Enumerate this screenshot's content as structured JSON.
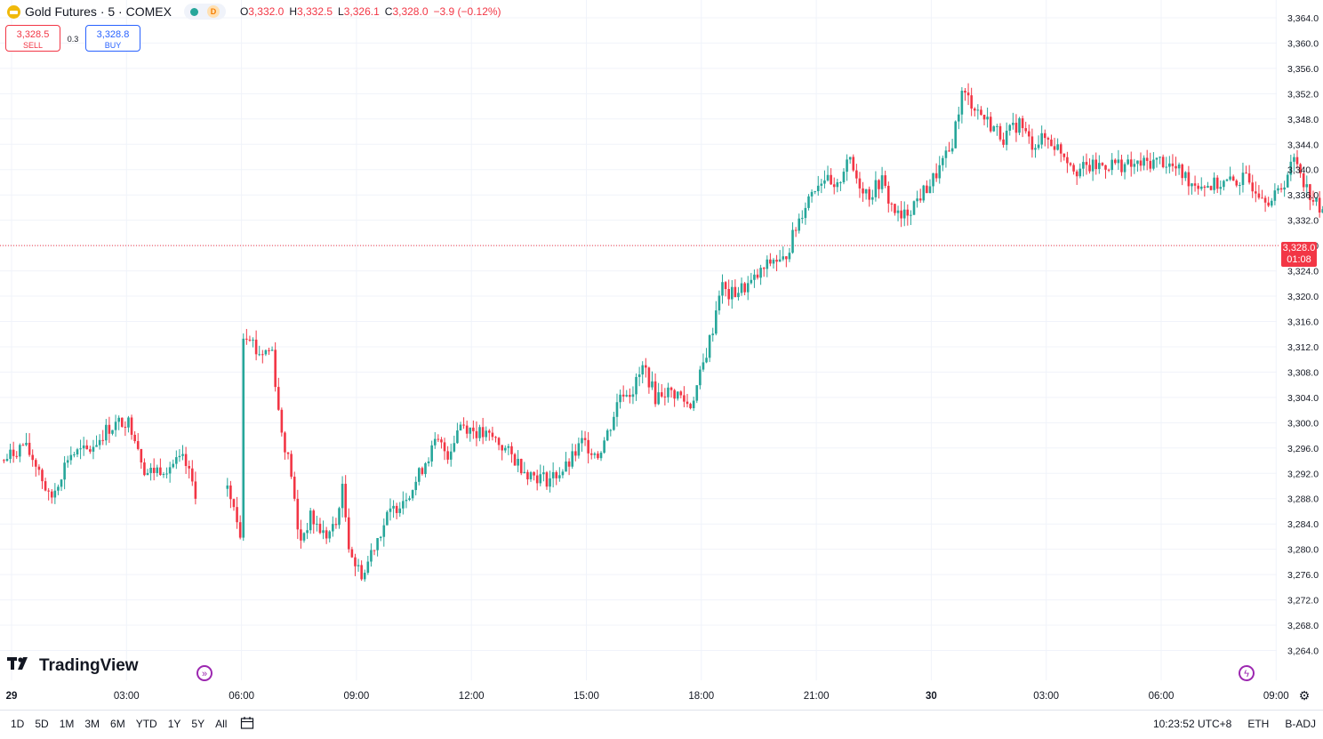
{
  "header": {
    "title": "Gold Futures · 5 · COMEX",
    "badge": "D",
    "ohlc": [
      {
        "label": "O",
        "value": "3,332.0"
      },
      {
        "label": "H",
        "value": "3,332.5"
      },
      {
        "label": "L",
        "value": "3,326.1"
      },
      {
        "label": "C",
        "value": "3,328.0"
      }
    ],
    "change": "−3.9 (−0.12%)"
  },
  "trade": {
    "sell_price": "3,328.5",
    "sell_label": "SELL",
    "spread": "0.3",
    "buy_price": "3,328.8",
    "buy_label": "BUY"
  },
  "logo_text": "TradingView",
  "last_price": {
    "value": "3,328.0",
    "countdown": "01:08"
  },
  "bottom": {
    "ranges": [
      "1D",
      "5D",
      "1M",
      "3M",
      "6M",
      "YTD",
      "1Y",
      "5Y",
      "All"
    ],
    "time": "10:23:52 UTC+8",
    "session": "ETH",
    "adjust": "B-ADJ"
  },
  "colors": {
    "up": "#26a69a",
    "down": "#f23645",
    "grid": "#f0f3fa"
  },
  "chart_data": {
    "type": "candlestick",
    "title": "Gold Futures · 5 · COMEX",
    "y_ticks": [
      3264,
      3268,
      3272,
      3276,
      3280,
      3284,
      3288,
      3292,
      3296,
      3300,
      3304,
      3308,
      3312,
      3316,
      3320,
      3324,
      3328,
      3332,
      3336,
      3340,
      3344,
      3348,
      3352,
      3356,
      3360,
      3364
    ],
    "y_tick_labels": [
      "3,264.0",
      "3,268.0",
      "3,272.0",
      "3,276.0",
      "3,280.0",
      "3,284.0",
      "3,288.0",
      "3,292.0",
      "3,296.0",
      "3,300.0",
      "3,304.0",
      "3,308.0",
      "3,312.0",
      "3,316.0",
      "3,320.0",
      "3,324.0",
      "3,328.0",
      "3,332.0",
      "3,336.0",
      "3,340.0",
      "3,344.0",
      "3,348.0",
      "3,352.0",
      "3,356.0",
      "3,360.0",
      "3,364.0"
    ],
    "ylim": [
      3261.4,
      3365.4
    ],
    "x_ticks": [
      {
        "label": "29",
        "bold": true,
        "hours": 0
      },
      {
        "label": "03:00",
        "hours": 3
      },
      {
        "label": "06:00",
        "hours": 6
      },
      {
        "label": "09:00",
        "hours": 9
      },
      {
        "label": "12:00",
        "hours": 12
      },
      {
        "label": "15:00",
        "hours": 15
      },
      {
        "label": "18:00",
        "hours": 18
      },
      {
        "label": "21:00",
        "hours": 21
      },
      {
        "label": "30",
        "bold": true,
        "hours": 24
      },
      {
        "label": "03:00",
        "hours": 27
      },
      {
        "label": "06:00",
        "hours": 30
      },
      {
        "label": "09:00",
        "hours": 33
      }
    ],
    "last_close": 3328.0,
    "close_path": [
      [
        -0.2,
        3294
      ],
      [
        0.3,
        3296.5
      ],
      [
        0.7,
        3293
      ],
      [
        1.0,
        3287.5
      ],
      [
        1.5,
        3295
      ],
      [
        2.0,
        3295.5
      ],
      [
        2.5,
        3299
      ],
      [
        3.0,
        3300.5
      ],
      [
        3.2,
        3298.5
      ],
      [
        3.5,
        3292
      ],
      [
        4.0,
        3293
      ],
      [
        4.5,
        3294
      ],
      [
        4.8,
        3289
      ],
      [
        5.55,
        3291.5
      ],
      [
        5.9,
        3284
      ],
      [
        6.0,
        3282
      ],
      [
        6.05,
        3314
      ],
      [
        6.2,
        3314.5
      ],
      [
        6.4,
        3311
      ],
      [
        6.8,
        3311.5
      ],
      [
        7.0,
        3300
      ],
      [
        7.3,
        3292
      ],
      [
        7.5,
        3281
      ],
      [
        7.8,
        3285
      ],
      [
        8.2,
        3282
      ],
      [
        8.5,
        3284
      ],
      [
        8.6,
        3291
      ],
      [
        8.8,
        3281
      ],
      [
        9.0,
        3277
      ],
      [
        9.2,
        3276
      ],
      [
        9.4,
        3280
      ],
      [
        9.8,
        3285
      ],
      [
        10.2,
        3288
      ],
      [
        10.5,
        3290
      ],
      [
        10.8,
        3294
      ],
      [
        11.1,
        3297
      ],
      [
        11.4,
        3295
      ],
      [
        11.7,
        3300
      ],
      [
        12.0,
        3299
      ],
      [
        12.3,
        3298
      ],
      [
        12.6,
        3297.5
      ],
      [
        13.0,
        3295
      ],
      [
        13.5,
        3292
      ],
      [
        14.0,
        3291
      ],
      [
        14.5,
        3293
      ],
      [
        14.9,
        3297
      ],
      [
        15.3,
        3295
      ],
      [
        15.6,
        3299
      ],
      [
        15.9,
        3305
      ],
      [
        16.2,
        3305
      ],
      [
        16.5,
        3309
      ],
      [
        16.8,
        3304
      ],
      [
        17.0,
        3305
      ],
      [
        17.4,
        3304.5
      ],
      [
        17.7,
        3302.5
      ],
      [
        17.9,
        3306
      ],
      [
        18.0,
        3308
      ],
      [
        18.3,
        3315
      ],
      [
        18.5,
        3322
      ],
      [
        18.7,
        3320
      ],
      [
        19.0,
        3321
      ],
      [
        19.3,
        3322
      ],
      [
        19.6,
        3324
      ],
      [
        19.9,
        3326
      ],
      [
        20.1,
        3325
      ],
      [
        20.3,
        3328
      ],
      [
        20.6,
        3333
      ],
      [
        20.9,
        3337
      ],
      [
        21.2,
        3339
      ],
      [
        21.5,
        3336
      ],
      [
        21.8,
        3342
      ],
      [
        22.1,
        3338
      ],
      [
        22.4,
        3336
      ],
      [
        22.7,
        3338.5
      ],
      [
        22.9,
        3335
      ],
      [
        23.2,
        3332
      ],
      [
        23.6,
        3335
      ],
      [
        24.0,
        3338
      ],
      [
        24.5,
        3343
      ],
      [
        24.8,
        3352
      ],
      [
        25.0,
        3351
      ],
      [
        25.4,
        3348
      ],
      [
        25.9,
        3345
      ],
      [
        26.3,
        3347.5
      ],
      [
        26.6,
        3344
      ],
      [
        27.0,
        3345
      ],
      [
        27.4,
        3343
      ],
      [
        27.8,
        3340
      ],
      [
        28.3,
        3340.5
      ],
      [
        28.8,
        3341
      ],
      [
        29.2,
        3340.5
      ],
      [
        29.6,
        3341
      ],
      [
        30.0,
        3341.5
      ],
      [
        30.4,
        3340
      ],
      [
        30.8,
        3338
      ],
      [
        31.3,
        3337.5
      ],
      [
        31.8,
        3338
      ],
      [
        32.2,
        3338.5
      ],
      [
        32.6,
        3336.5
      ],
      [
        32.9,
        3335
      ],
      [
        33.2,
        3338
      ],
      [
        33.5,
        3342
      ],
      [
        33.8,
        3337
      ],
      [
        34.1,
        3334
      ],
      [
        34.4,
        3331
      ],
      [
        34.55,
        3328
      ]
    ]
  }
}
